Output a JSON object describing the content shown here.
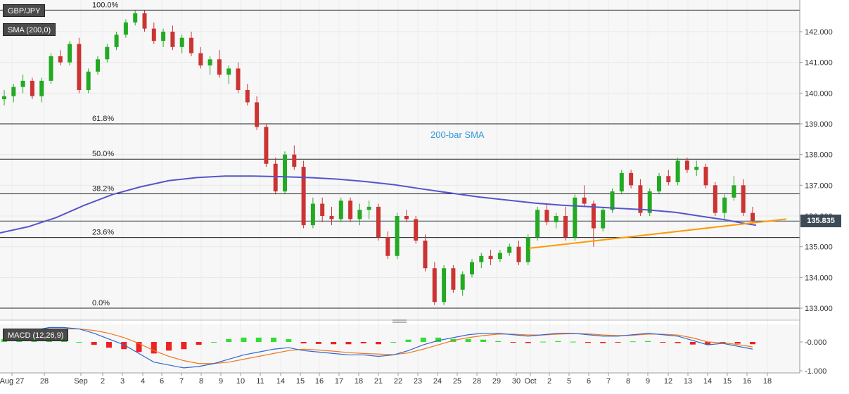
{
  "symbol_label": "GBP/JPY",
  "indicator_label": "SMA (200,0)",
  "macd_label": "MACD (12,26,9)",
  "current_price": "135.835",
  "colors": {
    "bull": "#22aa22",
    "bear": "#cc3333",
    "sma": "#5555cc",
    "trendline": "#ff9900",
    "macd_line": "#3366cc",
    "signal_line": "#ee7722",
    "hist_pos": "#33dd33",
    "hist_neg": "#ee2222",
    "annotation": "#3399dd"
  },
  "chart_data": [
    {
      "type": "candlestick",
      "title": "GBP/JPY",
      "ylim": [
        132.8,
        143.0
      ],
      "y_ticks": [
        "133.000",
        "134.000",
        "135.000",
        "136.000",
        "137.000",
        "138.000",
        "139.000",
        "140.000",
        "141.000",
        "142.000"
      ],
      "x_ticks": [
        "Aug 27",
        "28",
        "Sep",
        "2",
        "3",
        "4",
        "6",
        "7",
        "8",
        "9",
        "10",
        "11",
        "14",
        "15",
        "16",
        "17",
        "18",
        "21",
        "22",
        "23",
        "24",
        "25",
        "28",
        "29",
        "30",
        "Oct",
        "2",
        "5",
        "6",
        "7",
        "8",
        "9",
        "12",
        "13",
        "14",
        "15",
        "16",
        "18"
      ],
      "fibonacci": [
        {
          "label": "100.0%",
          "value": 142.7
        },
        {
          "label": "61.8%",
          "value": 139.0
        },
        {
          "label": "50.0%",
          "value": 137.85
        },
        {
          "label": "38.2%",
          "value": 136.72
        },
        {
          "label": "23.6%",
          "value": 135.3
        },
        {
          "label": "0.0%",
          "value": 133.0
        }
      ],
      "sma_label": "200-bar SMA",
      "sma_points": [
        [
          0,
          135.45
        ],
        [
          40,
          135.65
        ],
        [
          80,
          135.95
        ],
        [
          120,
          136.35
        ],
        [
          160,
          136.7
        ],
        [
          200,
          136.95
        ],
        [
          240,
          137.15
        ],
        [
          280,
          137.25
        ],
        [
          320,
          137.3
        ],
        [
          360,
          137.3
        ],
        [
          400,
          137.28
        ],
        [
          440,
          137.25
        ],
        [
          480,
          137.2
        ],
        [
          520,
          137.12
        ],
        [
          560,
          137.02
        ],
        [
          600,
          136.88
        ],
        [
          640,
          136.75
        ],
        [
          680,
          136.62
        ],
        [
          720,
          136.52
        ],
        [
          760,
          136.42
        ],
        [
          800,
          136.35
        ],
        [
          840,
          136.3
        ],
        [
          880,
          136.25
        ],
        [
          920,
          136.2
        ],
        [
          960,
          136.12
        ],
        [
          1000,
          135.98
        ],
        [
          1030,
          135.88
        ],
        [
          1060,
          135.75
        ],
        [
          1075,
          135.7
        ]
      ],
      "trendline": {
        "start": [
          752,
          134.95
        ],
        "end": [
          1118,
          135.9
        ]
      },
      "candles": [
        [
          139.8,
          140.1,
          139.6,
          139.9
        ],
        [
          139.9,
          140.3,
          139.7,
          140.2
        ],
        [
          140.2,
          140.6,
          140.0,
          140.4
        ],
        [
          140.4,
          140.5,
          139.8,
          139.9
        ],
        [
          139.9,
          140.5,
          139.7,
          140.4
        ],
        [
          140.4,
          141.3,
          140.3,
          141.2
        ],
        [
          141.2,
          141.4,
          140.9,
          141.0
        ],
        [
          141.0,
          141.7,
          140.9,
          141.6
        ],
        [
          141.6,
          141.8,
          140.0,
          140.1
        ],
        [
          140.1,
          140.8,
          140.0,
          140.7
        ],
        [
          140.7,
          141.2,
          140.6,
          141.1
        ],
        [
          141.1,
          141.6,
          141.0,
          141.5
        ],
        [
          141.5,
          142.0,
          141.4,
          141.9
        ],
        [
          141.9,
          142.4,
          141.8,
          142.3
        ],
        [
          142.3,
          142.7,
          142.2,
          142.6
        ],
        [
          142.6,
          142.7,
          142.0,
          142.1
        ],
        [
          142.1,
          142.3,
          141.6,
          141.7
        ],
        [
          141.7,
          142.1,
          141.5,
          142.0
        ],
        [
          142.0,
          142.2,
          141.4,
          141.5
        ],
        [
          141.5,
          141.9,
          141.3,
          141.8
        ],
        [
          141.8,
          142.0,
          141.2,
          141.3
        ],
        [
          141.3,
          141.5,
          140.8,
          140.9
        ],
        [
          140.9,
          141.2,
          140.6,
          141.1
        ],
        [
          141.1,
          141.4,
          140.5,
          140.6
        ],
        [
          140.6,
          140.9,
          140.3,
          140.8
        ],
        [
          140.8,
          141.0,
          140.0,
          140.1
        ],
        [
          140.1,
          140.3,
          139.6,
          139.7
        ],
        [
          139.7,
          139.9,
          138.8,
          138.9
        ],
        [
          138.9,
          139.0,
          137.6,
          137.7
        ],
        [
          137.7,
          137.9,
          136.7,
          136.8
        ],
        [
          136.8,
          138.1,
          136.7,
          138.0
        ],
        [
          138.0,
          138.3,
          137.5,
          137.6
        ],
        [
          137.6,
          137.8,
          135.6,
          135.7
        ],
        [
          135.7,
          136.6,
          135.6,
          136.4
        ],
        [
          136.4,
          136.6,
          135.8,
          136.0
        ],
        [
          136.0,
          136.3,
          135.7,
          135.9
        ],
        [
          135.9,
          136.6,
          135.8,
          136.5
        ],
        [
          136.5,
          136.6,
          135.8,
          135.9
        ],
        [
          135.9,
          136.4,
          135.7,
          136.2
        ],
        [
          136.2,
          136.5,
          135.9,
          136.3
        ],
        [
          136.3,
          136.4,
          135.2,
          135.3
        ],
        [
          135.3,
          135.5,
          134.6,
          134.7
        ],
        [
          134.7,
          136.1,
          134.6,
          136.0
        ],
        [
          136.0,
          136.2,
          135.8,
          135.9
        ],
        [
          135.9,
          136.0,
          135.1,
          135.2
        ],
        [
          135.2,
          135.4,
          134.2,
          134.3
        ],
        [
          134.3,
          134.5,
          133.1,
          133.2
        ],
        [
          133.2,
          134.4,
          133.1,
          134.3
        ],
        [
          134.3,
          134.4,
          133.5,
          133.6
        ],
        [
          133.6,
          134.2,
          133.4,
          134.1
        ],
        [
          134.1,
          134.6,
          134.0,
          134.5
        ],
        [
          134.5,
          134.8,
          134.3,
          134.7
        ],
        [
          134.7,
          134.9,
          134.4,
          134.6
        ],
        [
          134.6,
          134.9,
          134.5,
          134.8
        ],
        [
          134.8,
          135.1,
          134.7,
          135.0
        ],
        [
          135.0,
          135.2,
          134.4,
          134.5
        ],
        [
          134.5,
          135.4,
          134.4,
          135.3
        ],
        [
          135.3,
          136.3,
          135.2,
          136.2
        ],
        [
          136.2,
          136.4,
          135.7,
          135.8
        ],
        [
          135.8,
          136.1,
          135.6,
          136.0
        ],
        [
          136.0,
          136.3,
          135.2,
          135.3
        ],
        [
          135.3,
          136.7,
          135.2,
          136.6
        ],
        [
          136.6,
          137.0,
          136.3,
          136.4
        ],
        [
          136.4,
          136.5,
          135.0,
          135.6
        ],
        [
          135.6,
          136.3,
          135.5,
          136.2
        ],
        [
          136.2,
          136.9,
          136.1,
          136.8
        ],
        [
          136.8,
          137.5,
          136.7,
          137.4
        ],
        [
          137.4,
          137.5,
          136.9,
          137.0
        ],
        [
          137.0,
          137.2,
          136.0,
          136.1
        ],
        [
          136.1,
          136.9,
          136.0,
          136.8
        ],
        [
          136.8,
          137.4,
          136.7,
          137.3
        ],
        [
          137.3,
          137.5,
          137.0,
          137.1
        ],
        [
          137.1,
          137.9,
          137.0,
          137.8
        ],
        [
          137.8,
          137.9,
          137.4,
          137.5
        ],
        [
          137.5,
          137.8,
          137.3,
          137.6
        ],
        [
          137.6,
          137.7,
          136.9,
          137.0
        ],
        [
          137.0,
          137.1,
          136.0,
          136.1
        ],
        [
          136.1,
          136.7,
          135.9,
          136.6
        ],
        [
          136.6,
          137.3,
          136.5,
          137.0
        ],
        [
          137.0,
          137.2,
          136.0,
          136.1
        ],
        [
          136.1,
          136.3,
          135.8,
          135.84
        ]
      ]
    },
    {
      "type": "macd",
      "title": "MACD (12,26,9)",
      "ylim": [
        -1.0,
        0.6
      ],
      "y_ticks": [
        "-0.000",
        "-1.000"
      ],
      "macd": [
        0.2,
        0.3,
        0.4,
        0.5,
        0.5,
        0.45,
        0.3,
        0.1,
        -0.1,
        -0.4,
        -0.7,
        -0.8,
        -0.9,
        -0.85,
        -0.75,
        -0.6,
        -0.45,
        -0.35,
        -0.25,
        -0.2,
        -0.3,
        -0.35,
        -0.4,
        -0.45,
        -0.45,
        -0.5,
        -0.45,
        -0.3,
        -0.1,
        0.05,
        0.15,
        0.25,
        0.3,
        0.3,
        0.25,
        0.2,
        0.25,
        0.3,
        0.3,
        0.25,
        0.2,
        0.2,
        0.25,
        0.3,
        0.25,
        0.2,
        0.05,
        -0.1,
        -0.05,
        -0.15,
        -0.25
      ],
      "signal": [
        0.1,
        0.2,
        0.3,
        0.4,
        0.45,
        0.45,
        0.4,
        0.3,
        0.15,
        -0.05,
        -0.3,
        -0.5,
        -0.65,
        -0.75,
        -0.75,
        -0.7,
        -0.6,
        -0.5,
        -0.4,
        -0.3,
        -0.25,
        -0.28,
        -0.32,
        -0.37,
        -0.4,
        -0.42,
        -0.44,
        -0.38,
        -0.25,
        -0.1,
        0.05,
        0.15,
        0.22,
        0.27,
        0.27,
        0.24,
        0.24,
        0.27,
        0.29,
        0.28,
        0.24,
        0.22,
        0.23,
        0.27,
        0.27,
        0.24,
        0.14,
        0.0,
        -0.03,
        -0.09,
        -0.17
      ],
      "histogram": [
        0.1,
        0.1,
        0.1,
        0.1,
        0.05,
        0.0,
        -0.1,
        -0.2,
        -0.25,
        -0.35,
        -0.4,
        -0.3,
        -0.25,
        -0.1,
        0.0,
        0.1,
        0.15,
        0.15,
        0.15,
        0.1,
        -0.05,
        -0.07,
        -0.08,
        -0.08,
        -0.05,
        -0.08,
        0.0,
        0.08,
        0.15,
        0.15,
        0.1,
        0.1,
        0.08,
        0.03,
        -0.02,
        -0.04,
        0.01,
        0.03,
        0.01,
        -0.03,
        -0.04,
        -0.02,
        0.02,
        0.03,
        -0.02,
        -0.04,
        -0.09,
        -0.1,
        -0.02,
        -0.06,
        -0.08
      ]
    }
  ]
}
